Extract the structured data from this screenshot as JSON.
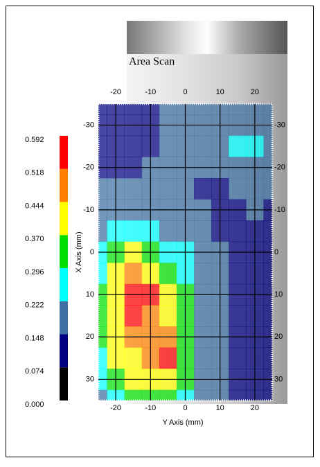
{
  "chart_data": {
    "type": "contour",
    "title": "Area Scan",
    "xlabel": "Y Axis (mm)",
    "ylabel": "X Axis (mm)",
    "x": [
      -25,
      -20,
      -15,
      -10,
      -5,
      0,
      5,
      10,
      15,
      20,
      25
    ],
    "y": [
      -35,
      -30,
      -25,
      -20,
      -15,
      -10,
      -5,
      0,
      5,
      10,
      15,
      20,
      25,
      30,
      35
    ],
    "z": [
      [
        0.12,
        0.12,
        0.12,
        0.13,
        0.16,
        0.18,
        0.18,
        0.18,
        0.18,
        0.18,
        0.17
      ],
      [
        0.12,
        0.12,
        0.12,
        0.13,
        0.16,
        0.18,
        0.18,
        0.18,
        0.2,
        0.22,
        0.18
      ],
      [
        0.12,
        0.12,
        0.12,
        0.14,
        0.16,
        0.18,
        0.17,
        0.19,
        0.23,
        0.25,
        0.19
      ],
      [
        0.13,
        0.13,
        0.13,
        0.15,
        0.17,
        0.18,
        0.15,
        0.17,
        0.19,
        0.19,
        0.17
      ],
      [
        0.15,
        0.15,
        0.16,
        0.17,
        0.18,
        0.18,
        0.14,
        0.14,
        0.16,
        0.17,
        0.16
      ],
      [
        0.18,
        0.19,
        0.19,
        0.21,
        0.21,
        0.19,
        0.15,
        0.12,
        0.14,
        0.15,
        0.14
      ],
      [
        0.2,
        0.24,
        0.28,
        0.26,
        0.22,
        0.2,
        0.17,
        0.13,
        0.12,
        0.13,
        0.14
      ],
      [
        0.24,
        0.33,
        0.38,
        0.34,
        0.28,
        0.23,
        0.19,
        0.15,
        0.13,
        0.13,
        0.14
      ],
      [
        0.28,
        0.38,
        0.46,
        0.44,
        0.36,
        0.26,
        0.2,
        0.16,
        0.14,
        0.13,
        0.13
      ],
      [
        0.3,
        0.42,
        0.52,
        0.53,
        0.42,
        0.3,
        0.2,
        0.16,
        0.14,
        0.13,
        0.13
      ],
      [
        0.3,
        0.42,
        0.54,
        0.5,
        0.44,
        0.31,
        0.2,
        0.16,
        0.14,
        0.12,
        0.12
      ],
      [
        0.3,
        0.4,
        0.48,
        0.5,
        0.5,
        0.34,
        0.21,
        0.16,
        0.14,
        0.12,
        0.12
      ],
      [
        0.28,
        0.38,
        0.44,
        0.49,
        0.53,
        0.36,
        0.21,
        0.16,
        0.13,
        0.12,
        0.12
      ],
      [
        0.25,
        0.33,
        0.4,
        0.44,
        0.44,
        0.32,
        0.2,
        0.15,
        0.13,
        0.12,
        0.12
      ],
      [
        0.22,
        0.28,
        0.33,
        0.36,
        0.36,
        0.28,
        0.19,
        0.15,
        0.13,
        0.12,
        0.12
      ]
    ],
    "xlim": [
      -25,
      25
    ],
    "ylim": [
      35,
      -35
    ],
    "xticks": [
      -20,
      -10,
      0,
      10,
      20
    ],
    "yticks": [
      -30,
      -20,
      -10,
      0,
      10,
      20,
      30
    ],
    "grid": true,
    "colorbar": {
      "ticks": [
        {
          "value": 0,
          "label": "0.000"
        },
        0.074,
        0.148,
        0.222,
        0.296,
        {
          "value": 0.37,
          "label": "0.370"
        },
        0.444,
        0.518,
        0.592
      ],
      "colors": [
        "#000000",
        "#000080",
        "#3d6fa0",
        "#00ffff",
        "#00e000",
        "#ffff00",
        "#ff8000",
        "#ff0000"
      ]
    }
  }
}
